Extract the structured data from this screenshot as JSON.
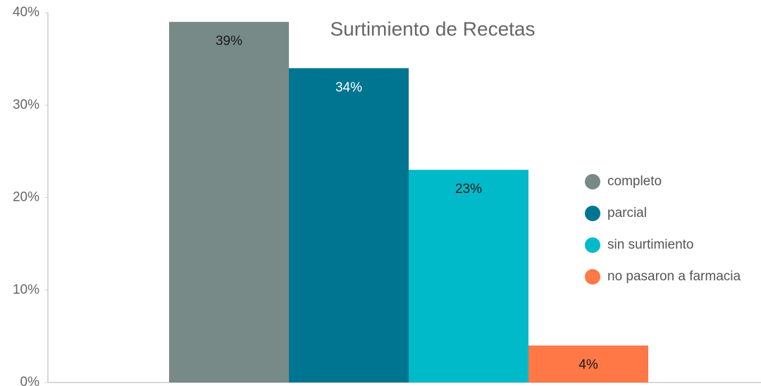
{
  "chart_data": {
    "type": "bar",
    "title": "Surtimiento de Recetas",
    "categories": [
      null
    ],
    "series": [
      {
        "name": "completo",
        "color": "#778a88",
        "values": [
          39
        ],
        "value_labels": [
          "39%"
        ]
      },
      {
        "name": "parcial",
        "color": "#007591",
        "values": [
          34
        ],
        "value_labels": [
          "34%"
        ]
      },
      {
        "name": "sin surtimiento",
        "color": "#00bac9",
        "values": [
          23
        ],
        "value_labels": [
          "23%"
        ]
      },
      {
        "name": "no pasaron a farmacia",
        "color": "#ff7846",
        "values": [
          4
        ],
        "value_labels": [
          "4%"
        ]
      }
    ],
    "ylim": [
      0,
      40
    ],
    "yticks": [
      {
        "value": 0,
        "label": "0%"
      },
      {
        "value": 10,
        "label": "10%"
      },
      {
        "value": 20,
        "label": "20%"
      },
      {
        "value": 30,
        "label": "30%"
      },
      {
        "value": 40,
        "label": "40%"
      }
    ],
    "legend": "right"
  }
}
